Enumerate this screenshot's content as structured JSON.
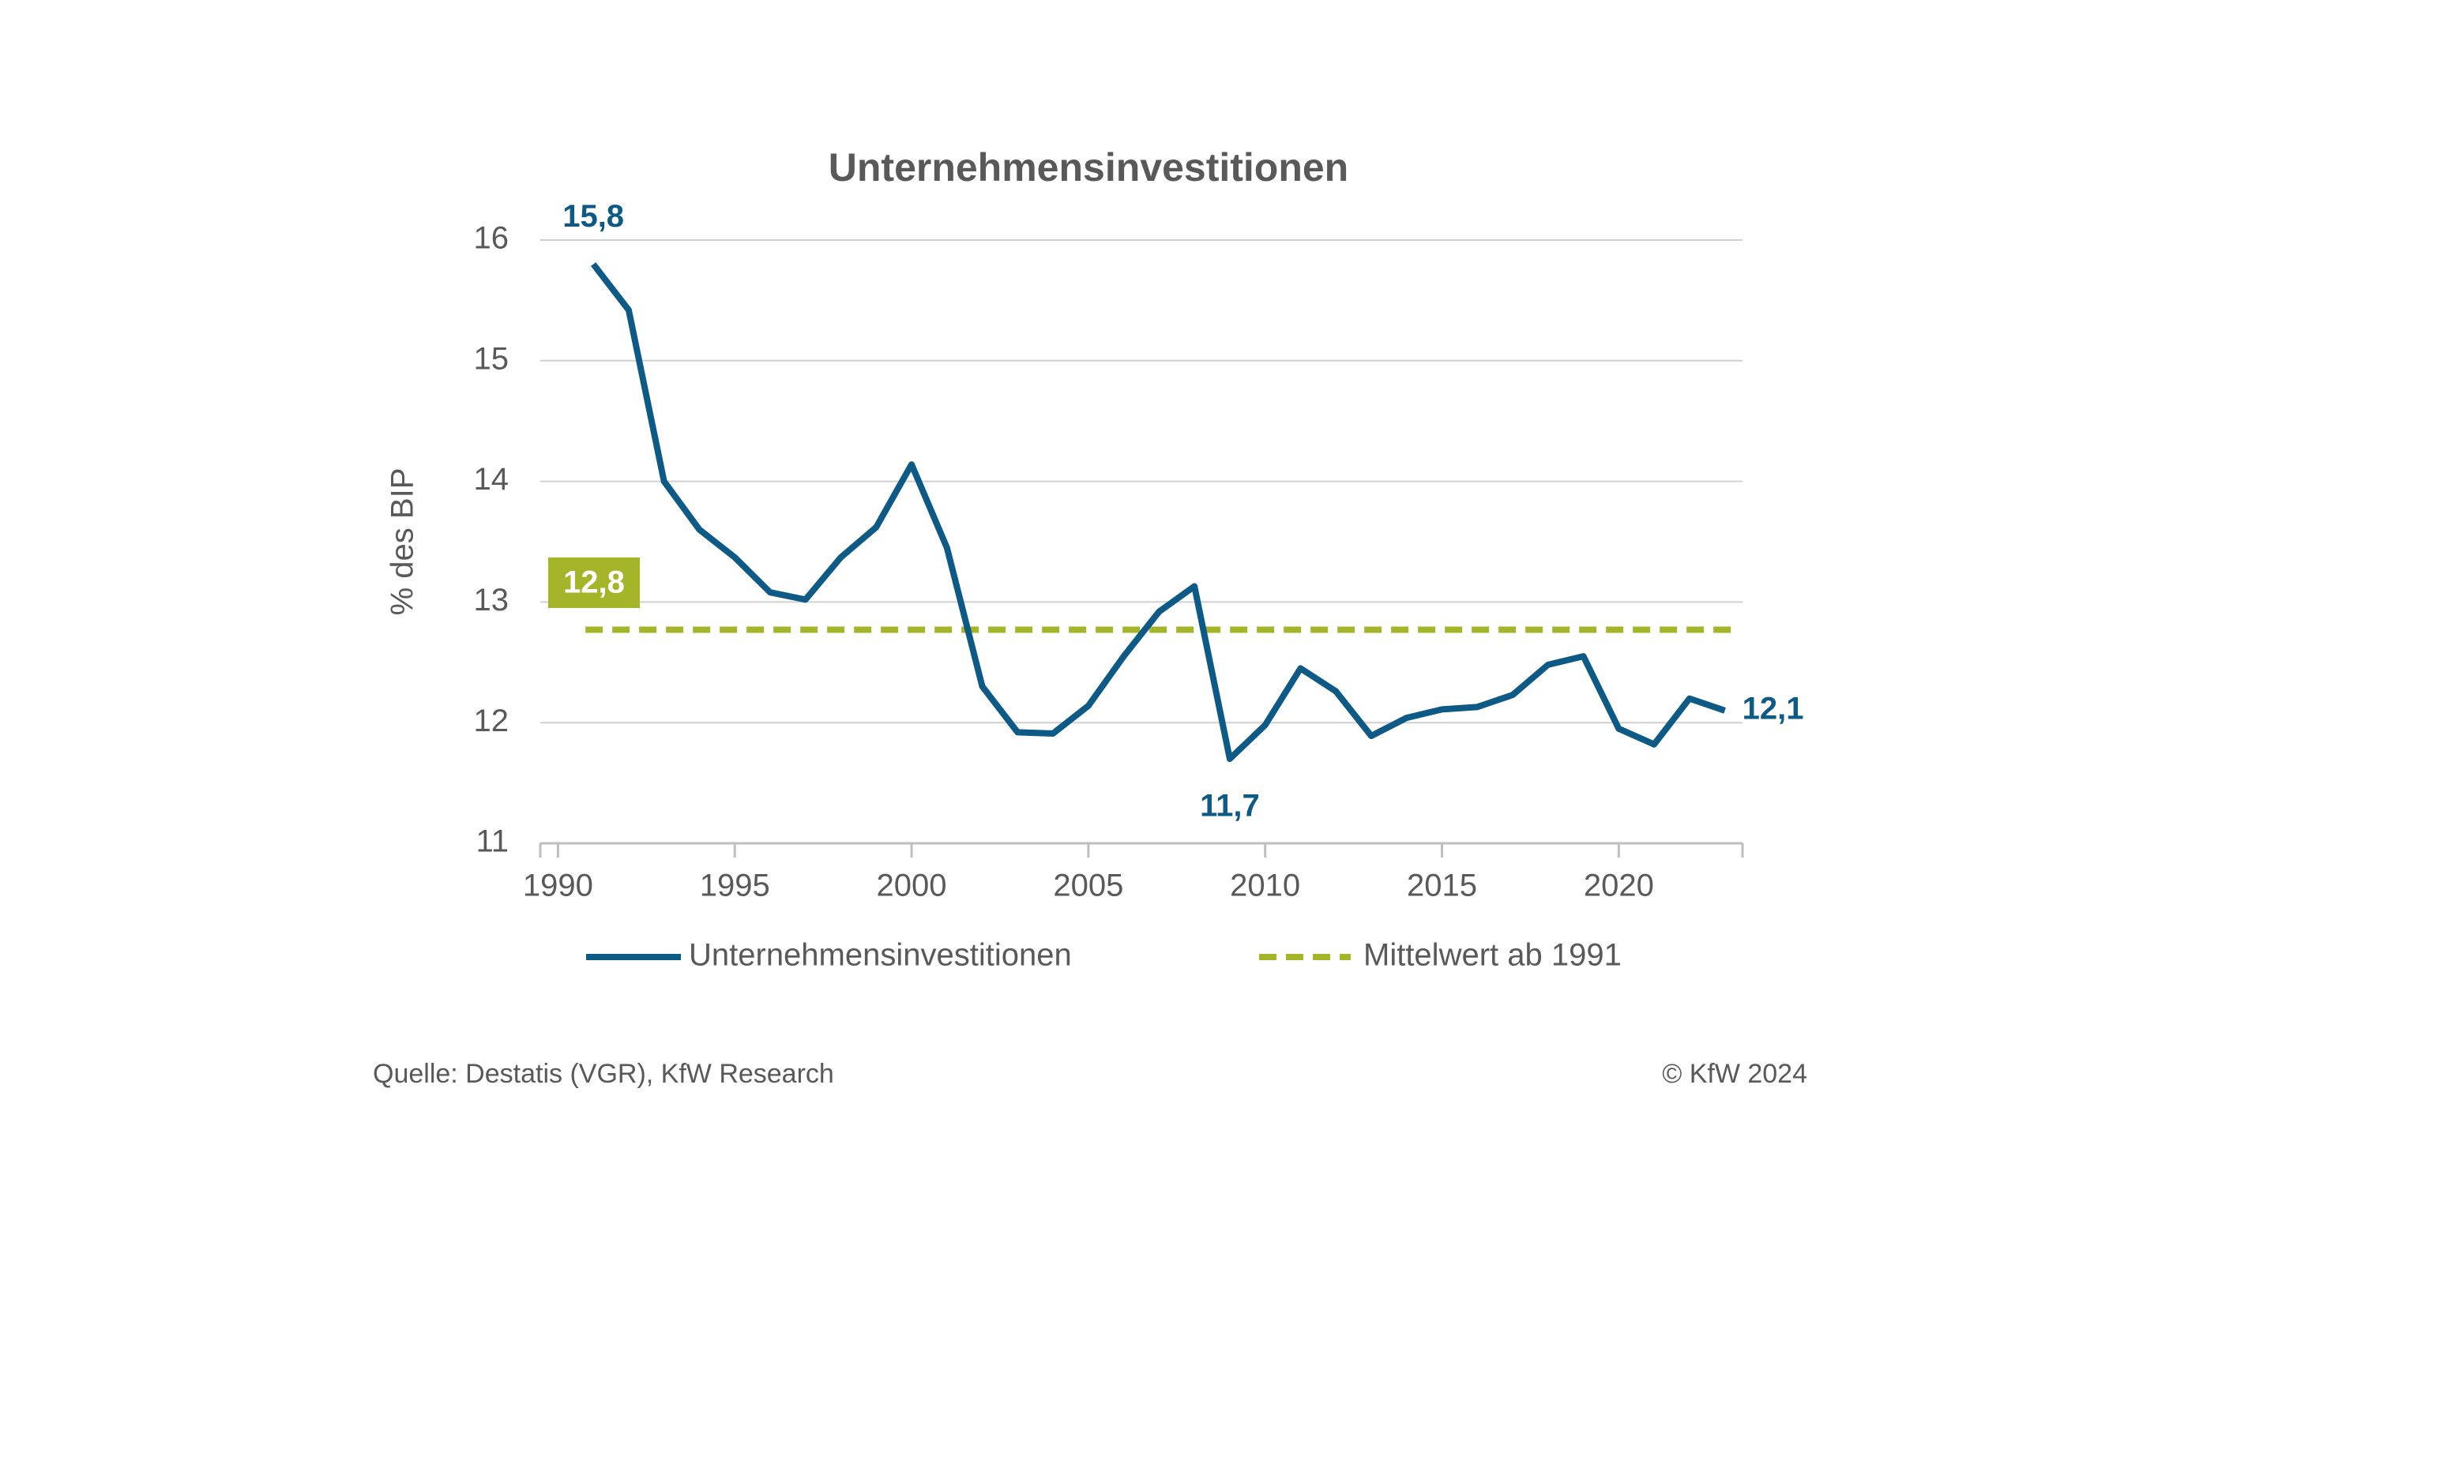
{
  "chart_data": {
    "type": "line",
    "title": "Unternehmensinvestitionen",
    "y_label": "% des BIP",
    "x": [
      1991,
      1992,
      1993,
      1994,
      1995,
      1996,
      1997,
      1998,
      1999,
      2000,
      2001,
      2002,
      2003,
      2004,
      2005,
      2006,
      2007,
      2008,
      2009,
      2010,
      2011,
      2012,
      2013,
      2014,
      2015,
      2016,
      2017,
      2018,
      2019,
      2020,
      2021,
      2022,
      2023
    ],
    "series": [
      {
        "name": "Unternehmensinvestitionen",
        "color": "#0d5a86",
        "values": [
          15.8,
          15.42,
          14.0,
          13.6,
          13.37,
          13.08,
          13.02,
          13.37,
          13.62,
          14.14,
          13.45,
          12.3,
          11.92,
          11.91,
          12.14,
          12.55,
          12.92,
          13.13,
          11.7,
          11.98,
          12.45,
          12.26,
          11.89,
          12.04,
          12.11,
          12.13,
          12.23,
          12.48,
          12.55,
          11.95,
          11.82,
          12.2,
          12.1
        ],
        "value_labels": [
          "15,8",
          null,
          null,
          null,
          null,
          null,
          null,
          null,
          null,
          null,
          null,
          null,
          null,
          null,
          null,
          null,
          null,
          null,
          "11,7",
          null,
          null,
          null,
          null,
          null,
          null,
          null,
          null,
          null,
          null,
          null,
          null,
          null,
          "12,1"
        ]
      }
    ],
    "mean_line": {
      "name": "Mittelwert ab 1991",
      "value": 12.77,
      "label": "12,8",
      "color": "#a5b52a"
    },
    "xlim": [
      1989.5,
      2023.5
    ],
    "xticks": [
      1990,
      1995,
      2000,
      2005,
      2010,
      2015,
      2020
    ],
    "ylim": [
      11,
      16
    ],
    "yticks": [
      11,
      12,
      13,
      14,
      15,
      16
    ],
    "grid": true,
    "source": "Quelle: Destatis (VGR), KfW Research",
    "copyright": "© KfW 2024"
  }
}
